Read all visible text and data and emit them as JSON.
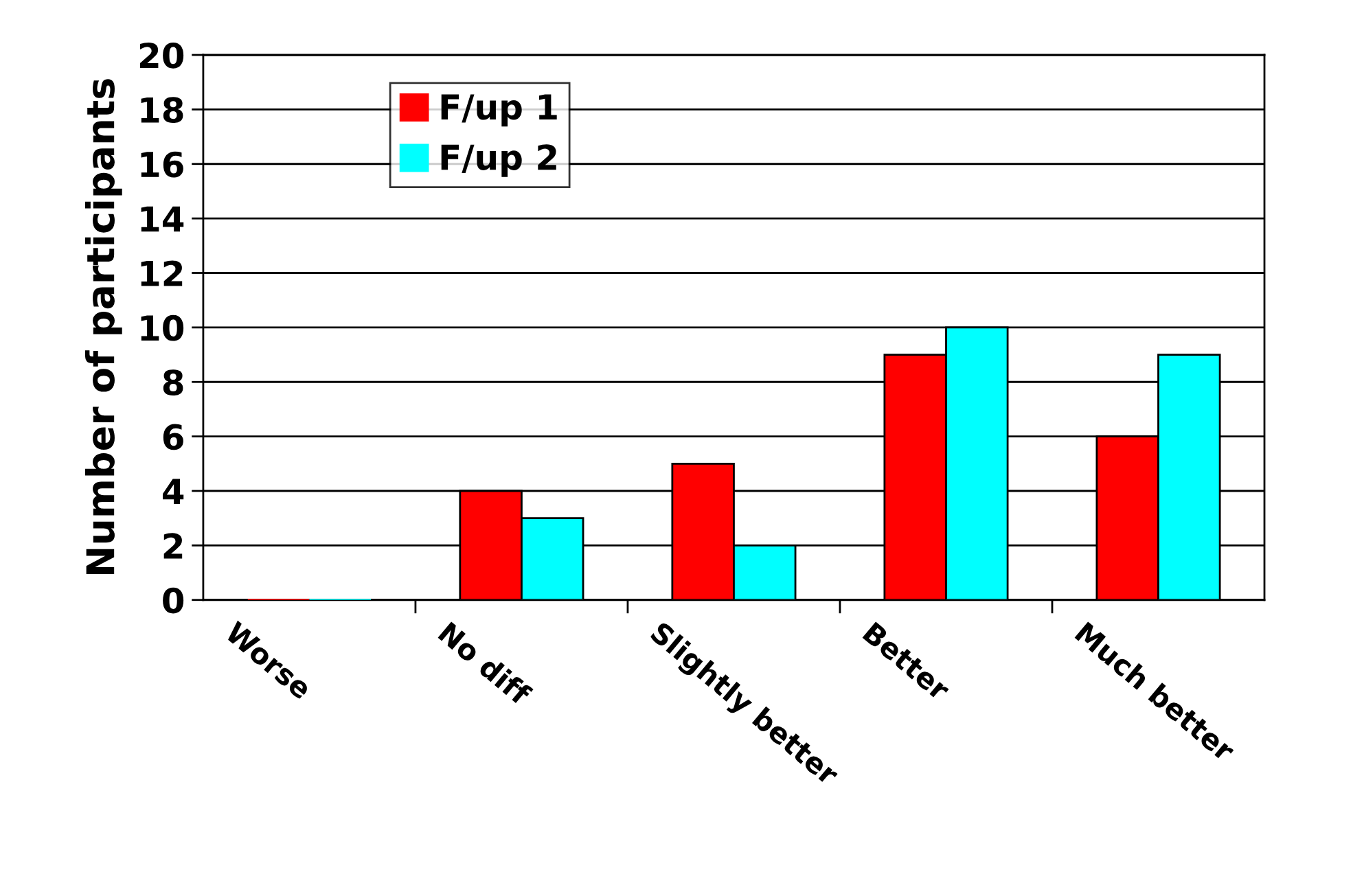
{
  "chart_data": {
    "type": "bar",
    "ylabel": "Number of participants",
    "categories": [
      "Worse",
      "No diff",
      "Slightly better",
      "Better",
      "Much better"
    ],
    "series": [
      {
        "name": "F/up 1",
        "color": "#ff0000",
        "values": [
          0,
          4,
          5,
          9,
          6
        ]
      },
      {
        "name": "F/up 2",
        "color": "#00ffff",
        "values": [
          0,
          3,
          2,
          10,
          9
        ]
      }
    ],
    "ylim": [
      0,
      20
    ],
    "yticks": [
      0,
      2,
      4,
      6,
      8,
      10,
      12,
      14,
      16,
      18,
      20
    ],
    "grid": "y",
    "legend": "top left"
  }
}
